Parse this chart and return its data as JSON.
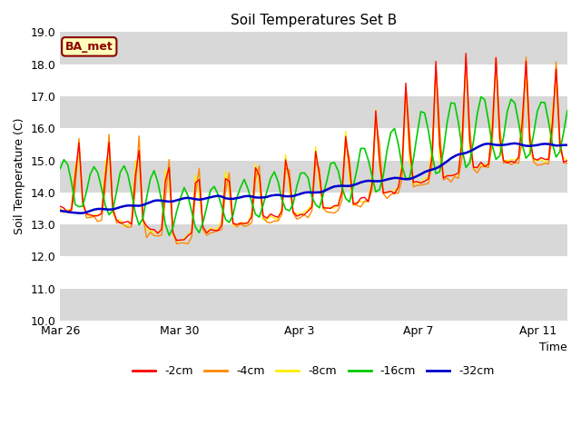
{
  "title": "Soil Temperatures Set B",
  "xlabel": "Time",
  "ylabel": "Soil Temperature (C)",
  "ylim": [
    10.0,
    19.0
  ],
  "yticks": [
    10.0,
    11.0,
    12.0,
    13.0,
    14.0,
    15.0,
    16.0,
    17.0,
    18.0,
    19.0
  ],
  "annotation": "BA_met",
  "legend_labels": [
    "-2cm",
    "-4cm",
    "-8cm",
    "-16cm",
    "-32cm"
  ],
  "legend_colors": [
    "#ff0000",
    "#ff8800",
    "#ffee00",
    "#00cc00",
    "#0000cc"
  ],
  "line_widths": [
    1.0,
    1.0,
    1.0,
    1.2,
    1.8
  ],
  "band_colors": [
    "#d8d8d8",
    "#ffffff"
  ],
  "xtick_labels": [
    "Mar 26",
    "Mar 30",
    "Apr 3",
    "Apr 7",
    "Apr 11"
  ],
  "xtick_positions": [
    0,
    4,
    8,
    12,
    16
  ],
  "num_days": 17
}
